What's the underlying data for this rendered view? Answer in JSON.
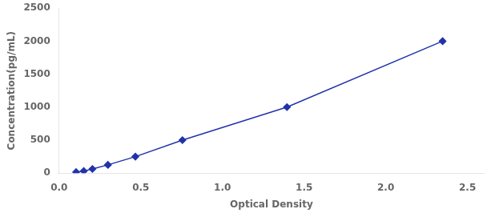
{
  "chart_data": {
    "type": "line",
    "x": [
      0.104,
      0.151,
      0.204,
      0.299,
      0.467,
      0.755,
      1.395,
      2.348
    ],
    "values": [
      15.6,
      31.25,
      62.5,
      125,
      250,
      500,
      1000,
      2000
    ],
    "color": "#2233AA",
    "marker": "diamond",
    "xlabel": "Optical Density",
    "ylabel": "Concentration(pg/mL)",
    "xlim": [
      0.0,
      2.6
    ],
    "ylim": [
      0,
      2500
    ],
    "xticks": [
      {
        "value": 0,
        "label": "0.0"
      },
      0.5,
      {
        "value": 1.0,
        "label": "1.0"
      },
      1.5,
      {
        "value": 2.0,
        "label": "2.0"
      },
      2.5
    ],
    "yticks": [
      0,
      500,
      1000,
      1500,
      2000,
      2500
    ],
    "grid": false
  }
}
